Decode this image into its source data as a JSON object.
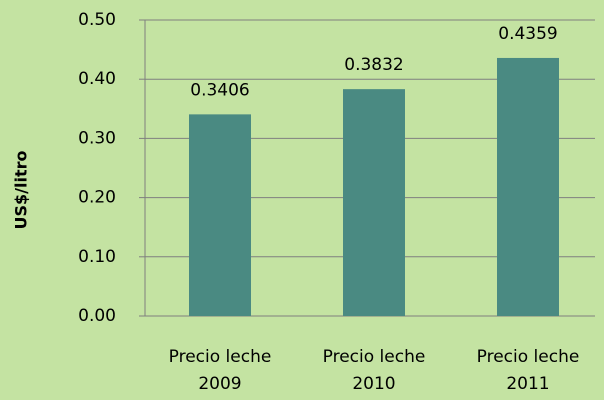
{
  "chart_data": {
    "type": "bar",
    "y_label": "US$/litro",
    "categories": [
      "Precio leche 2009",
      "Precio leche 2010",
      "Precio leche 2011"
    ],
    "values": [
      0.3406,
      0.3832,
      0.4359
    ],
    "color": "#4a8a82",
    "ylim": [
      0,
      0.5
    ],
    "yticks": [
      {
        "value": 0,
        "label": "0.00"
      },
      {
        "value": 0.1,
        "label": "0.10"
      },
      {
        "value": 0.2,
        "label": "0.20"
      },
      {
        "value": 0.3,
        "label": "0.30"
      },
      {
        "value": 0.4,
        "label": "0.40"
      },
      {
        "value": 0.5,
        "label": "0.50"
      }
    ],
    "grid": true
  }
}
